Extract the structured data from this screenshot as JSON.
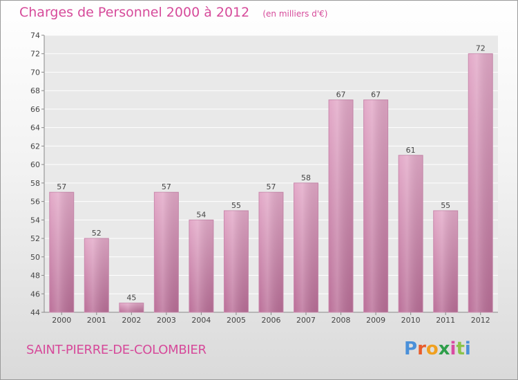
{
  "header": {
    "title": "Charges de Personnel 2000 à 2012",
    "subtitle": "(en milliers d'€)"
  },
  "footer": {
    "city": "SAINT-PIERRE-DE-COLOMBIER",
    "logo": "Proxiti",
    "logo_colors": [
      "#4a90d9",
      "#e85c2b",
      "#f0a020",
      "#2e9e4a",
      "#d94ba2",
      "#8bc34a",
      "#4a90d9"
    ]
  },
  "colors": {
    "bar": "#d595b8",
    "bar_top": "#e3a9c8",
    "bar_bottom": "#ba6f98",
    "title": "#d64a9a",
    "plot_bg": "#e9e9e9"
  },
  "chart_data": {
    "type": "bar",
    "title": "Charges de Personnel 2000 à 2012",
    "subtitle": "(en milliers d'€)",
    "categories": [
      "2000",
      "2001",
      "2002",
      "2003",
      "2004",
      "2005",
      "2006",
      "2007",
      "2008",
      "2009",
      "2010",
      "2011",
      "2012"
    ],
    "values": [
      57,
      52,
      45,
      57,
      54,
      55,
      57,
      58,
      67,
      67,
      61,
      55,
      72
    ],
    "ylim": [
      44,
      74
    ],
    "yticks": [
      44,
      46,
      48,
      50,
      52,
      54,
      56,
      58,
      60,
      62,
      64,
      66,
      68,
      70,
      72,
      74
    ],
    "grid": true,
    "xlabel": "",
    "ylabel": ""
  }
}
